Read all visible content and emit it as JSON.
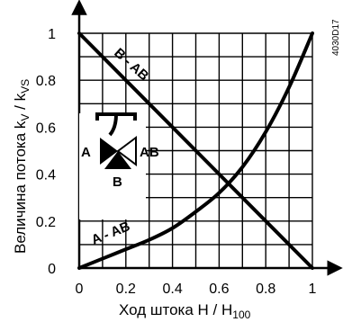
{
  "chart_data": {
    "type": "line",
    "x_ticks": [
      "0",
      "0.2",
      "0.4",
      "0.6",
      "0.8",
      "1"
    ],
    "y_ticks": [
      "0",
      "0.2",
      "0.4",
      "0.6",
      "0.8",
      "1"
    ],
    "xlim": [
      0,
      1
    ],
    "ylim": [
      0,
      1
    ],
    "grid": true,
    "xlabel": {
      "main": "Ход штока H / H",
      "sub": "100"
    },
    "ylabel": {
      "main": "Величина потока k",
      "sub1": "V",
      "mid": " / k",
      "sub2": "VS"
    },
    "series": [
      {
        "label": "B - AB",
        "x": [
          0,
          1
        ],
        "y": [
          1,
          0
        ]
      },
      {
        "label": "A - AB",
        "x": [
          0,
          0.1,
          0.2,
          0.3,
          0.4,
          0.5,
          0.6,
          0.7,
          0.8,
          0.9,
          1
        ],
        "y": [
          0,
          0.04,
          0.08,
          0.12,
          0.17,
          0.24,
          0.32,
          0.43,
          0.58,
          0.77,
          1
        ]
      }
    ],
    "valve_symbol": {
      "port_a": "A",
      "port_ab": "AB",
      "port_b": "B"
    },
    "figure_code": "4030D17"
  },
  "colors": {
    "line": "#000000",
    "grid": "#000000",
    "background": "#ffffff"
  }
}
